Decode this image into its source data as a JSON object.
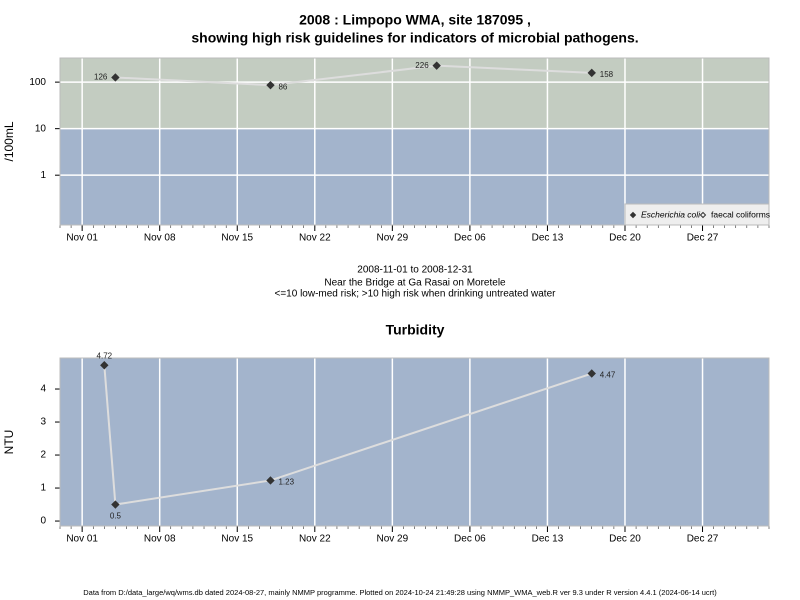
{
  "chart_data": [
    {
      "type": "line",
      "title": [
        "2008 : Limpopo WMA, site 187095 ,",
        "showing high risk guidelines for indicators of microbial pathogens."
      ],
      "subtitle": [
        "2008-11-01 to 2008-12-31",
        "Near the Bridge at Ga Rasai on Moretele",
        "<=10 low-med risk; >10 high risk when drinking untreated water"
      ],
      "y_label": "/100mL",
      "log_y": true,
      "x": [
        "2008-11-04",
        "2008-11-18",
        "2008-12-03",
        "2008-12-17"
      ],
      "series": [
        {
          "name": "Escherichia coli",
          "color": "#333333",
          "line_color": "#dddddd",
          "marker": "filled-diamond",
          "values": [
            126,
            86,
            226,
            158
          ]
        },
        {
          "name": "faecal coliforms",
          "color": "#333333",
          "line_color": "#dddddd",
          "marker": "open-diamond",
          "values": [
            null,
            null,
            null,
            null
          ]
        }
      ],
      "xlim": [
        "2008-10-30",
        "2009-01-02"
      ],
      "xticks": [
        {
          "value": "2008-11-01",
          "label": "Nov 01"
        },
        {
          "value": "2008-11-08",
          "label": "Nov 08"
        },
        {
          "value": "2008-11-15",
          "label": "Nov 15"
        },
        {
          "value": "2008-11-22",
          "label": "Nov 22"
        },
        {
          "value": "2008-11-29",
          "label": "Nov 29"
        },
        {
          "value": "2008-12-06",
          "label": "Dec 06"
        },
        {
          "value": "2008-12-13",
          "label": "Dec 13"
        },
        {
          "value": "2008-12-20",
          "label": "Dec 20"
        },
        {
          "value": "2008-12-27",
          "label": "Dec 27"
        }
      ],
      "ylim": [
        0.085,
        330
      ],
      "yticks": [
        1,
        10,
        100
      ],
      "threshold": 10,
      "band_colors": {
        "above": "#c3ccc1",
        "below": "#a3b4cc"
      },
      "grid": "both",
      "legend": "bottom-right"
    },
    {
      "type": "line",
      "title": "Turbidity",
      "y_label": "NTU",
      "log_y": false,
      "x": [
        "2008-11-03",
        "2008-11-04",
        "2008-11-18",
        "2008-12-17"
      ],
      "series": [
        {
          "name": "Turbidity",
          "color": "#333333",
          "line_color": "#dddddd",
          "marker": "filled-diamond",
          "values": [
            4.72,
            0.5,
            1.23,
            4.47
          ]
        }
      ],
      "xlim": [
        "2008-10-30",
        "2009-01-02"
      ],
      "xticks": [
        {
          "value": "2008-11-01",
          "label": "Nov 01"
        },
        {
          "value": "2008-11-08",
          "label": "Nov 08"
        },
        {
          "value": "2008-11-15",
          "label": "Nov 15"
        },
        {
          "value": "2008-11-22",
          "label": "Nov 22"
        },
        {
          "value": "2008-11-29",
          "label": "Nov 29"
        },
        {
          "value": "2008-12-06",
          "label": "Dec 06"
        },
        {
          "value": "2008-12-13",
          "label": "Dec 13"
        },
        {
          "value": "2008-12-20",
          "label": "Dec 20"
        },
        {
          "value": "2008-12-27",
          "label": "Dec 27"
        }
      ],
      "ylim": [
        -0.15,
        4.94
      ],
      "yticks": [
        0,
        1,
        2,
        3,
        4
      ],
      "band_colors": {
        "below": "#a3b4cc"
      },
      "grid": "x"
    }
  ],
  "footer": "Data from D:/data_large/wq/wms.db dated 2024-08-27, mainly NMMP programme. Plotted on 2024-10-24 21:49:28 using NMMP_WMA_web.R ver 9.3 under R version 4.4.1 (2024-06-14 ucrt)"
}
